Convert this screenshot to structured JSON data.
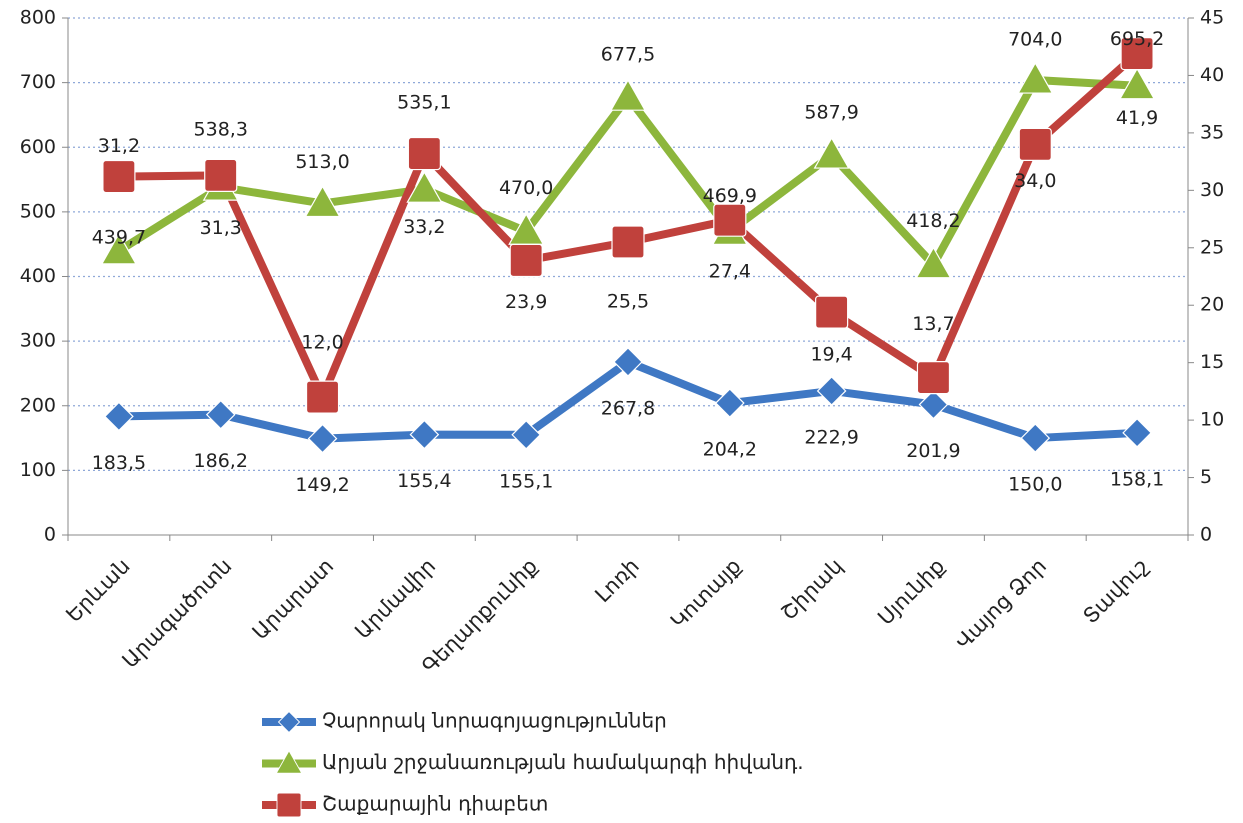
{
  "chart_data": {
    "type": "line",
    "categories": [
      "Երևան",
      "Արագածոտն",
      "Արարատ",
      "Արմավիր",
      "Գեղարքունիք",
      "Լոռի",
      "Կոտայք",
      "Շիրակ",
      "Սյունիք",
      "Վայոց Ձոր",
      "Տավուշ"
    ],
    "series": [
      {
        "name": "Չարորակ նորագոյացություններ",
        "color": "#3f78c4",
        "marker": "diamond",
        "values": [
          183.5,
          186.2,
          149.2,
          155.4,
          155.1,
          267.8,
          204.2,
          222.9,
          201.9,
          150.0,
          158.1
        ],
        "value_labels": [
          "183,5",
          "186,2",
          "149,2",
          "155,4",
          "155,1",
          "267,8",
          "204,2",
          "222,9",
          "201,9",
          "150,0",
          "158,1"
        ]
      },
      {
        "name": "Արյան շրջանառության համակարգի հիվանդ.",
        "color": "#8db63c",
        "marker": "triangle",
        "values": [
          439.7,
          538.3,
          513.0,
          535.1,
          470.0,
          677.5,
          469.9,
          587.9,
          418.2,
          704.0,
          695.2
        ],
        "value_labels": [
          "439,7",
          "538,3",
          "513,0",
          "535,1",
          "470,0",
          "677,5",
          "469,9",
          "587,9",
          "418,2",
          "704,0",
          "695,2"
        ]
      },
      {
        "name": "Շաքարային դիաբետ",
        "color": "#c0413c",
        "marker": "square",
        "axis": "y2",
        "values": [
          31.2,
          31.3,
          12.0,
          33.2,
          23.9,
          25.5,
          27.4,
          19.4,
          13.7,
          34.0,
          41.9
        ],
        "value_labels": [
          "31,2",
          "31,3",
          "12,0",
          "33,2",
          "23,9",
          "25,5",
          "27,4",
          "19,4",
          "13,7",
          "34,0",
          "41,9"
        ]
      }
    ],
    "ylim": [
      0,
      800
    ],
    "yticks": [
      0,
      100,
      200,
      300,
      400,
      500,
      600,
      700,
      800
    ],
    "y2lim": [
      0,
      45
    ],
    "y2ticks": [
      0,
      5,
      10,
      15,
      20,
      25,
      30,
      35,
      40,
      45
    ],
    "grid": true,
    "legend": "bottom"
  }
}
